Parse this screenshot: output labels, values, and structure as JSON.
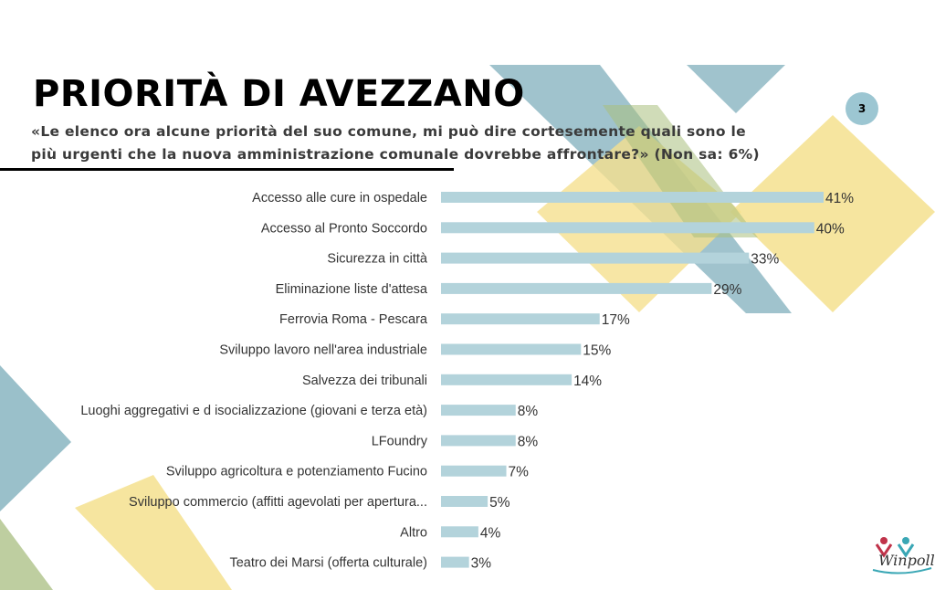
{
  "page": {
    "number": "3"
  },
  "header": {
    "title": "PRIORITÀ DI AVEZZANO",
    "subtitle_line1": "«Le elenco ora alcune priorità del suo comune, mi può dire cortesemente quali sono le",
    "subtitle_line2": "più urgenti che la nuova amministrazione comunale dovrebbe affrontare?» (Non sa: 6%)"
  },
  "logo": {
    "text": "Winpoll"
  },
  "colors": {
    "bar": "#b3d3db",
    "teal": "#8fb9c4",
    "yellow": "#f5e08e",
    "green": "#b3c68f"
  },
  "chart_data": {
    "type": "bar",
    "orientation": "horizontal",
    "categories": [
      "Accesso alle cure in ospedale",
      "Accesso al Pronto Soccordo",
      "Sicurezza in città",
      "Eliminazione liste d'attesa",
      "Ferrovia Roma - Pescara",
      "Sviluppo lavoro nell'area industriale",
      "Salvezza dei tribunali",
      "Luoghi aggregativi e d isocializzazione (giovani e terza età)",
      "LFoundry",
      "Sviluppo agricoltura e potenziamento Fucino",
      "Sviluppo commercio (affitti agevolati per apertura...",
      "Altro",
      "Teatro dei Marsi (offerta culturale)"
    ],
    "values": [
      41,
      40,
      33,
      29,
      17,
      15,
      14,
      8,
      8,
      7,
      5,
      4,
      3
    ],
    "value_labels": [
      "41%",
      "40%",
      "33%",
      "29%",
      "17%",
      "15%",
      "14%",
      "8%",
      "8%",
      "7%",
      "5%",
      "4%",
      "3%"
    ],
    "xlim": [
      0,
      41
    ],
    "grid": false,
    "legend": "none"
  }
}
